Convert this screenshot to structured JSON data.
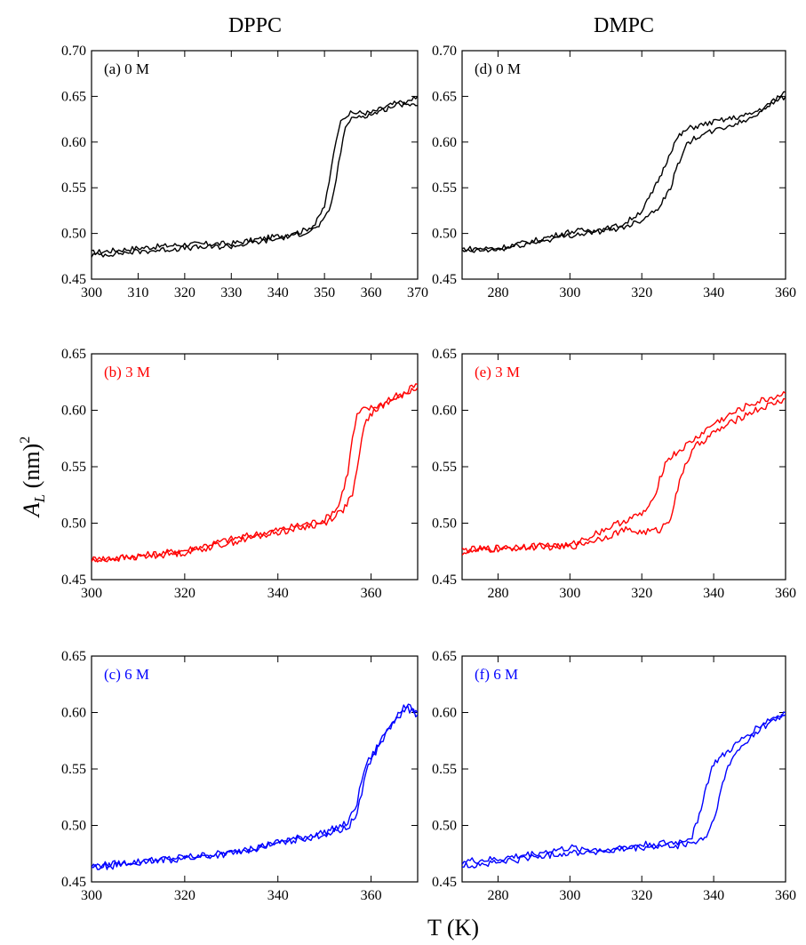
{
  "figure": {
    "column_titles": [
      "DPPC",
      "DMPC"
    ],
    "xlabel": "T (K)",
    "ylabel_main": "A",
    "ylabel_sub": "L",
    "ylabel_rest": " (nm)",
    "ylabel_sup": "2"
  },
  "colors": {
    "row0": "#000000",
    "row1": "#ff0000",
    "row2": "#0000ff"
  },
  "chart_data": [
    {
      "type": "line",
      "label": "(a) 0 M",
      "color": "#000000",
      "xlim": [
        300,
        370
      ],
      "ylim": [
        0.45,
        0.7
      ],
      "xticks": [
        300,
        310,
        320,
        330,
        340,
        350,
        360,
        370
      ],
      "yticks": [
        0.45,
        0.5,
        0.55,
        0.6,
        0.65,
        0.7
      ],
      "ytick_labels": [
        "0.45",
        "0.50",
        "0.55",
        "0.60",
        "0.65",
        "0.70"
      ],
      "series": [
        {
          "x": [
            300,
            310,
            320,
            330,
            340,
            345,
            348,
            350,
            351,
            352,
            353,
            354,
            356,
            360,
            365,
            370
          ],
          "y": [
            0.479,
            0.484,
            0.488,
            0.489,
            0.497,
            0.502,
            0.51,
            0.53,
            0.555,
            0.59,
            0.615,
            0.628,
            0.632,
            0.632,
            0.642,
            0.64
          ]
        },
        {
          "x": [
            300,
            310,
            320,
            330,
            340,
            345,
            348,
            350,
            351,
            352,
            353,
            354,
            355,
            357,
            360,
            365,
            370
          ],
          "y": [
            0.476,
            0.48,
            0.484,
            0.486,
            0.494,
            0.5,
            0.505,
            0.515,
            0.525,
            0.545,
            0.575,
            0.605,
            0.622,
            0.628,
            0.63,
            0.64,
            0.65
          ]
        }
      ]
    },
    {
      "type": "line",
      "label": "(b) 3 M",
      "color": "#ff0000",
      "xlim": [
        300,
        370
      ],
      "ylim": [
        0.45,
        0.65
      ],
      "xticks": [
        300,
        320,
        340,
        360
      ],
      "yticks": [
        0.45,
        0.5,
        0.55,
        0.6,
        0.65
      ],
      "ytick_labels": [
        "0.45",
        "0.50",
        "0.55",
        "0.60",
        "0.65"
      ],
      "series": [
        {
          "x": [
            300,
            310,
            320,
            330,
            340,
            350,
            353,
            355,
            356,
            357,
            358,
            360,
            365,
            370
          ],
          "y": [
            0.468,
            0.471,
            0.476,
            0.486,
            0.494,
            0.503,
            0.515,
            0.545,
            0.575,
            0.595,
            0.6,
            0.602,
            0.61,
            0.62
          ]
        },
        {
          "x": [
            300,
            310,
            320,
            330,
            340,
            350,
            354,
            356,
            357,
            358,
            359,
            361,
            365,
            370
          ],
          "y": [
            0.467,
            0.47,
            0.474,
            0.483,
            0.492,
            0.5,
            0.512,
            0.525,
            0.545,
            0.575,
            0.592,
            0.6,
            0.612,
            0.623
          ]
        }
      ]
    },
    {
      "type": "line",
      "label": "(c) 6 M",
      "color": "#0000ff",
      "xlim": [
        300,
        370
      ],
      "ylim": [
        0.45,
        0.65
      ],
      "xticks": [
        300,
        320,
        340,
        360
      ],
      "yticks": [
        0.45,
        0.5,
        0.55,
        0.6,
        0.65
      ],
      "ytick_labels": [
        "0.45",
        "0.50",
        "0.55",
        "0.60",
        "0.65"
      ],
      "series": [
        {
          "x": [
            300,
            310,
            320,
            330,
            340,
            350,
            355,
            357,
            358,
            359,
            360,
            362,
            365,
            367,
            370
          ],
          "y": [
            0.464,
            0.468,
            0.472,
            0.476,
            0.485,
            0.494,
            0.502,
            0.52,
            0.54,
            0.555,
            0.56,
            0.575,
            0.595,
            0.605,
            0.598
          ]
        },
        {
          "x": [
            300,
            310,
            320,
            330,
            340,
            350,
            355,
            357,
            358,
            359,
            361,
            363,
            365,
            368,
            370
          ],
          "y": [
            0.462,
            0.467,
            0.471,
            0.475,
            0.484,
            0.492,
            0.498,
            0.51,
            0.53,
            0.55,
            0.565,
            0.58,
            0.592,
            0.605,
            0.6
          ]
        }
      ]
    },
    {
      "type": "line",
      "label": "(d) 0 M",
      "color": "#000000",
      "xlim": [
        270,
        360
      ],
      "ylim": [
        0.45,
        0.7
      ],
      "xticks": [
        280,
        300,
        320,
        340,
        360
      ],
      "yticks": [
        0.45,
        0.5,
        0.55,
        0.6,
        0.65,
        0.7
      ],
      "ytick_labels": [
        "0.45",
        "0.50",
        "0.55",
        "0.60",
        "0.65",
        "0.70"
      ],
      "series": [
        {
          "x": [
            270,
            280,
            290,
            300,
            310,
            315,
            320,
            323,
            326,
            328,
            330,
            333,
            336,
            340,
            350,
            360
          ],
          "y": [
            0.483,
            0.484,
            0.492,
            0.502,
            0.505,
            0.51,
            0.525,
            0.545,
            0.57,
            0.59,
            0.605,
            0.615,
            0.618,
            0.622,
            0.63,
            0.65
          ]
        },
        {
          "x": [
            270,
            280,
            290,
            300,
            310,
            315,
            320,
            325,
            328,
            330,
            332,
            335,
            340,
            350,
            360
          ],
          "y": [
            0.48,
            0.482,
            0.49,
            0.498,
            0.503,
            0.507,
            0.515,
            0.53,
            0.55,
            0.575,
            0.595,
            0.605,
            0.612,
            0.625,
            0.655
          ]
        }
      ]
    },
    {
      "type": "line",
      "label": "(e) 3 M",
      "color": "#ff0000",
      "xlim": [
        270,
        360
      ],
      "ylim": [
        0.45,
        0.65
      ],
      "xticks": [
        280,
        300,
        320,
        340,
        360
      ],
      "yticks": [
        0.45,
        0.5,
        0.55,
        0.6,
        0.65
      ],
      "ytick_labels": [
        "0.45",
        "0.50",
        "0.55",
        "0.60",
        "0.65"
      ],
      "series": [
        {
          "x": [
            270,
            280,
            290,
            300,
            310,
            315,
            320,
            323,
            325,
            327,
            330,
            335,
            340,
            350,
            360
          ],
          "y": [
            0.476,
            0.478,
            0.48,
            0.48,
            0.495,
            0.502,
            0.508,
            0.518,
            0.54,
            0.556,
            0.563,
            0.575,
            0.588,
            0.605,
            0.615
          ]
        },
        {
          "x": [
            270,
            280,
            290,
            300,
            310,
            315,
            320,
            325,
            328,
            330,
            332,
            335,
            340,
            350,
            360
          ],
          "y": [
            0.474,
            0.477,
            0.479,
            0.479,
            0.488,
            0.494,
            0.492,
            0.494,
            0.505,
            0.53,
            0.552,
            0.568,
            0.58,
            0.598,
            0.61
          ]
        }
      ]
    },
    {
      "type": "line",
      "label": "(f) 6 M",
      "color": "#0000ff",
      "xlim": [
        270,
        360
      ],
      "ylim": [
        0.45,
        0.65
      ],
      "xticks": [
        280,
        300,
        320,
        340,
        360
      ],
      "yticks": [
        0.45,
        0.5,
        0.55,
        0.6,
        0.65
      ],
      "ytick_labels": [
        "0.45",
        "0.50",
        "0.55",
        "0.60",
        "0.65"
      ],
      "series": [
        {
          "x": [
            270,
            280,
            290,
            300,
            310,
            320,
            330,
            334,
            336,
            338,
            340,
            342,
            345,
            350,
            355,
            360
          ],
          "y": [
            0.468,
            0.47,
            0.475,
            0.48,
            0.478,
            0.483,
            0.485,
            0.49,
            0.51,
            0.535,
            0.555,
            0.56,
            0.568,
            0.582,
            0.593,
            0.6
          ]
        },
        {
          "x": [
            270,
            280,
            290,
            300,
            310,
            320,
            330,
            335,
            338,
            340,
            342,
            344,
            346,
            350,
            355,
            360
          ],
          "y": [
            0.464,
            0.467,
            0.472,
            0.476,
            0.477,
            0.48,
            0.482,
            0.485,
            0.49,
            0.505,
            0.53,
            0.552,
            0.563,
            0.578,
            0.59,
            0.598
          ]
        }
      ]
    }
  ]
}
